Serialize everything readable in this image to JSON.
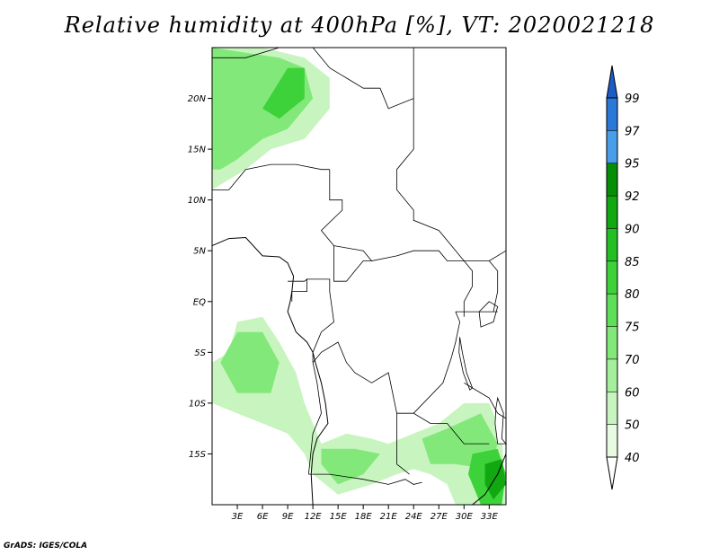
{
  "title": "Relative humidity at 400hPa [%], VT: 2020021218",
  "credit": "GrADS: IGES/COLA",
  "map": {
    "lon_range": [
      0,
      35
    ],
    "lat_range": [
      -20,
      25
    ],
    "lat_ticks": [
      {
        "value": 20,
        "label": "20N"
      },
      {
        "value": 15,
        "label": "15N"
      },
      {
        "value": 10,
        "label": "10N"
      },
      {
        "value": 5,
        "label": "5N"
      },
      {
        "value": 0,
        "label": "EQ"
      },
      {
        "value": -5,
        "label": "5S"
      },
      {
        "value": -10,
        "label": "10S"
      },
      {
        "value": -15,
        "label": "15S"
      }
    ],
    "lon_ticks": [
      {
        "value": 3,
        "label": "3E"
      },
      {
        "value": 6,
        "label": "6E"
      },
      {
        "value": 9,
        "label": "9E"
      },
      {
        "value": 12,
        "label": "12E"
      },
      {
        "value": 15,
        "label": "15E"
      },
      {
        "value": 18,
        "label": "18E"
      },
      {
        "value": 21,
        "label": "21E"
      },
      {
        "value": 24,
        "label": "24E"
      },
      {
        "value": 27,
        "label": "27E"
      },
      {
        "value": 30,
        "label": "30E"
      },
      {
        "value": 33,
        "label": "33E"
      }
    ]
  },
  "colorbar": {
    "levels": [
      {
        "label": "40",
        "color": "#ffffff"
      },
      {
        "label": "50",
        "color": "#e6fbe1"
      },
      {
        "label": "60",
        "color": "#c8f5bf"
      },
      {
        "label": "70",
        "color": "#a5ef9c"
      },
      {
        "label": "75",
        "color": "#82e87a"
      },
      {
        "label": "80",
        "color": "#5fdf58"
      },
      {
        "label": "85",
        "color": "#3ed23a"
      },
      {
        "label": "90",
        "color": "#24bf24"
      },
      {
        "label": "92",
        "color": "#12a812"
      },
      {
        "label": "95",
        "color": "#068e06"
      },
      {
        "label": "97",
        "color": "#4a9de8"
      },
      {
        "label": "99",
        "color": "#2a78d8"
      }
    ],
    "top_color": "#1c5cc4"
  },
  "humidity_regions": [
    {
      "level": 60,
      "ring": [
        [
          0,
          25
        ],
        [
          6,
          25
        ],
        [
          11,
          24
        ],
        [
          14,
          22
        ],
        [
          14,
          19
        ],
        [
          11,
          16
        ],
        [
          7,
          15
        ],
        [
          4,
          13
        ],
        [
          2,
          12
        ],
        [
          0,
          11
        ]
      ]
    },
    {
      "level": 75,
      "ring": [
        [
          0,
          25
        ],
        [
          4,
          24.5
        ],
        [
          8,
          24
        ],
        [
          11,
          23
        ],
        [
          12,
          20
        ],
        [
          9,
          17
        ],
        [
          6,
          16
        ],
        [
          3,
          14
        ],
        [
          1,
          13
        ],
        [
          0,
          13
        ]
      ]
    },
    {
      "level": 85,
      "ring": [
        [
          9,
          23
        ],
        [
          11,
          23
        ],
        [
          11,
          20
        ],
        [
          8,
          18
        ],
        [
          6,
          19
        ]
      ]
    },
    {
      "level": 60,
      "ring": [
        [
          3,
          -2
        ],
        [
          6,
          -1.5
        ],
        [
          8,
          -4
        ],
        [
          10,
          -7
        ],
        [
          11,
          -10
        ],
        [
          13,
          -14
        ],
        [
          16,
          -13
        ],
        [
          19,
          -13.5
        ],
        [
          21,
          -14
        ],
        [
          24,
          -13
        ],
        [
          27,
          -12
        ],
        [
          30,
          -10
        ],
        [
          33,
          -10
        ],
        [
          34.5,
          -13
        ],
        [
          35,
          -20
        ],
        [
          29,
          -20
        ],
        [
          28,
          -18
        ],
        [
          26,
          -17
        ],
        [
          24,
          -16.5
        ],
        [
          22,
          -17
        ],
        [
          19,
          -18
        ],
        [
          15,
          -19
        ],
        [
          12,
          -17
        ],
        [
          11,
          -15
        ],
        [
          9,
          -13
        ],
        [
          6,
          -12
        ],
        [
          3,
          -11
        ],
        [
          0,
          -10
        ],
        [
          0,
          -6
        ],
        [
          2,
          -5
        ]
      ]
    },
    {
      "level": 75,
      "ring": [
        [
          3,
          -3
        ],
        [
          6,
          -3
        ],
        [
          8,
          -6
        ],
        [
          7,
          -9
        ],
        [
          3,
          -9
        ],
        [
          1,
          -6
        ]
      ]
    },
    {
      "level": 75,
      "ring": [
        [
          13,
          -14.5
        ],
        [
          17,
          -14.5
        ],
        [
          20,
          -15
        ],
        [
          18,
          -17
        ],
        [
          15,
          -18
        ],
        [
          13,
          -16
        ]
      ]
    },
    {
      "level": 75,
      "ring": [
        [
          25,
          -13.5
        ],
        [
          28,
          -12.5
        ],
        [
          32,
          -11
        ],
        [
          34,
          -14
        ],
        [
          33,
          -16.5
        ],
        [
          29,
          -16
        ],
        [
          26,
          -16
        ]
      ]
    },
    {
      "level": 85,
      "ring": [
        [
          31,
          -15
        ],
        [
          34,
          -14.5
        ],
        [
          35,
          -17
        ],
        [
          34.5,
          -20
        ],
        [
          32,
          -20
        ],
        [
          30.5,
          -17
        ]
      ]
    },
    {
      "level": 92,
      "ring": [
        [
          32.5,
          -16
        ],
        [
          34.5,
          -15.5
        ],
        [
          35,
          -18
        ],
        [
          33.5,
          -19.5
        ],
        [
          32.5,
          -18
        ]
      ]
    }
  ],
  "borders": [
    [
      [
        0,
        11
      ],
      [
        2,
        11
      ],
      [
        4,
        13
      ],
      [
        7,
        13.5
      ],
      [
        10,
        13.5
      ],
      [
        13,
        13
      ],
      [
        14,
        13
      ]
    ],
    [
      [
        0,
        24
      ],
      [
        4,
        24
      ],
      [
        8,
        25
      ]
    ],
    [
      [
        12,
        25
      ],
      [
        14,
        23
      ],
      [
        16,
        22
      ],
      [
        18,
        21
      ],
      [
        20,
        21
      ],
      [
        21,
        19
      ],
      [
        24,
        20
      ],
      [
        24,
        25
      ]
    ],
    [
      [
        24,
        20
      ],
      [
        24,
        15
      ],
      [
        22,
        13
      ],
      [
        22,
        11
      ],
      [
        24,
        9
      ],
      [
        24,
        8
      ],
      [
        27,
        7
      ],
      [
        30,
        4
      ],
      [
        33,
        4
      ],
      [
        35,
        5
      ]
    ],
    [
      [
        14,
        13
      ],
      [
        14,
        10
      ],
      [
        15.5,
        10
      ],
      [
        15.5,
        9
      ],
      [
        13,
        7
      ],
      [
        14.5,
        5.5
      ],
      [
        14.5,
        2
      ],
      [
        16,
        2
      ]
    ],
    [
      [
        14.5,
        5.5
      ],
      [
        18,
        5
      ],
      [
        19,
        4
      ],
      [
        22,
        4.5
      ],
      [
        24,
        5
      ],
      [
        27,
        5
      ],
      [
        28,
        4
      ],
      [
        30,
        4
      ]
    ],
    [
      [
        16,
        2
      ],
      [
        17,
        3
      ],
      [
        18,
        4
      ],
      [
        19,
        4
      ]
    ],
    [
      [
        9,
        2
      ],
      [
        11,
        2
      ],
      [
        11.3,
        2.2
      ],
      [
        11.3,
        1
      ],
      [
        9.5,
        1
      ],
      [
        9.5,
        0
      ]
    ],
    [
      [
        11.3,
        2.2
      ],
      [
        14,
        2.2
      ],
      [
        14,
        1
      ],
      [
        14.5,
        -2
      ],
      [
        13,
        -3
      ],
      [
        12,
        -5
      ],
      [
        12,
        -6
      ]
    ],
    [
      [
        12,
        -6
      ],
      [
        13,
        -5
      ],
      [
        15,
        -4
      ],
      [
        16,
        -6
      ],
      [
        17,
        -7
      ],
      [
        19,
        -8
      ],
      [
        21,
        -7
      ],
      [
        22,
        -11
      ],
      [
        24,
        -11
      ],
      [
        26,
        -12
      ],
      [
        28,
        -12
      ],
      [
        29,
        -13
      ],
      [
        30,
        -14
      ],
      [
        33,
        -14
      ]
    ],
    [
      [
        12,
        -6
      ],
      [
        12.5,
        -8
      ],
      [
        13,
        -11
      ],
      [
        12,
        -13
      ],
      [
        11.5,
        -17
      ]
    ],
    [
      [
        11.5,
        -17
      ],
      [
        14,
        -17
      ],
      [
        18,
        -17.5
      ],
      [
        21,
        -18
      ],
      [
        23,
        -17.5
      ],
      [
        24,
        -18
      ],
      [
        25,
        -17.8
      ]
    ],
    [
      [
        22,
        -11
      ],
      [
        22,
        -13
      ],
      [
        22,
        -16
      ],
      [
        23.5,
        -17
      ]
    ],
    [
      [
        30,
        -8
      ],
      [
        32,
        -9
      ],
      [
        33,
        -9.5
      ],
      [
        34,
        -11
      ],
      [
        35,
        -11.5
      ]
    ],
    [
      [
        29,
        -1
      ],
      [
        30,
        -1
      ],
      [
        31,
        -1
      ],
      [
        33,
        -1
      ],
      [
        34,
        -1
      ]
    ],
    [
      [
        30,
        4
      ],
      [
        31,
        3
      ],
      [
        31,
        1.5
      ],
      [
        30,
        0
      ],
      [
        30,
        -1.5
      ]
    ],
    [
      [
        33,
        4
      ],
      [
        34,
        3
      ],
      [
        34,
        1
      ],
      [
        33.5,
        -1
      ]
    ],
    [
      [
        24,
        -11
      ],
      [
        27.5,
        -8
      ],
      [
        28.5,
        -5.5
      ],
      [
        29,
        -4
      ],
      [
        29.5,
        -2
      ],
      [
        29,
        -1
      ]
    ]
  ],
  "coastlines": [
    [
      [
        0,
        5.5
      ],
      [
        2,
        6.2
      ],
      [
        4,
        6.3
      ],
      [
        6,
        4.5
      ],
      [
        8,
        4.4
      ],
      [
        9,
        3.8
      ],
      [
        9.7,
        2.5
      ],
      [
        9.5,
        1
      ],
      [
        9.3,
        0
      ],
      [
        9,
        -1
      ],
      [
        10,
        -3
      ],
      [
        11.3,
        -4
      ],
      [
        12,
        -5
      ],
      [
        12.3,
        -6
      ],
      [
        13,
        -8
      ],
      [
        13.5,
        -10
      ],
      [
        13.8,
        -12
      ],
      [
        12.5,
        -13.5
      ],
      [
        12,
        -15
      ],
      [
        11.8,
        -17
      ],
      [
        12,
        -20
      ]
    ],
    [
      [
        31,
        -20
      ],
      [
        32.5,
        -19
      ],
      [
        34,
        -17
      ],
      [
        35,
        -15
      ]
    ]
  ],
  "lakes": [
    [
      [
        29.5,
        -3.5
      ],
      [
        29.8,
        -5
      ],
      [
        30.3,
        -7
      ],
      [
        31,
        -8.5
      ],
      [
        30.7,
        -8.7
      ],
      [
        29.9,
        -7
      ],
      [
        29.4,
        -5
      ]
    ],
    [
      [
        33,
        0
      ],
      [
        34,
        -0.5
      ],
      [
        33.5,
        -2
      ],
      [
        32,
        -2.5
      ],
      [
        31.8,
        -1
      ]
    ],
    [
      [
        34,
        -9.5
      ],
      [
        34.7,
        -11
      ],
      [
        34.5,
        -13.5
      ],
      [
        35,
        -14
      ],
      [
        34,
        -14
      ],
      [
        33.7,
        -12
      ],
      [
        33.8,
        -10.5
      ]
    ]
  ]
}
